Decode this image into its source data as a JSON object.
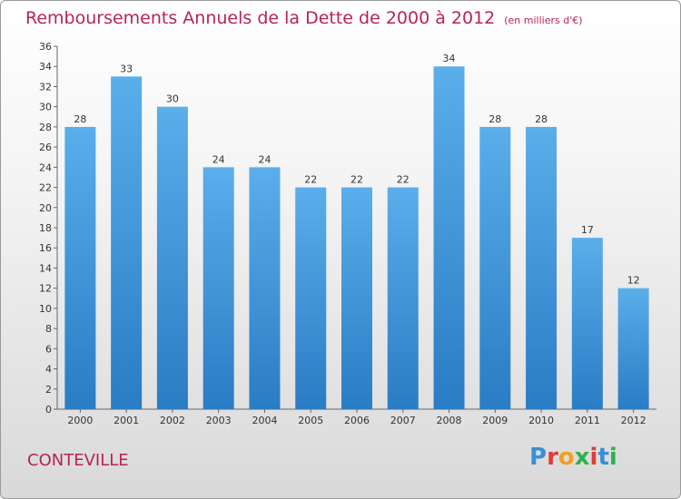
{
  "title": "Remboursements Annuels de la Dette de 2000 à 2012",
  "unit": "(en milliers d'€)",
  "town": "CONTEVILLE",
  "logo": {
    "text": "Proxiti",
    "colors": [
      "#3a8fd6",
      "#e23b3b",
      "#f0a020",
      "#2db34a",
      "#e23b3b",
      "#3a8fd6",
      "#2db34a"
    ]
  },
  "colors": {
    "bar_top": "#5aaeea",
    "bar_bottom": "#2a7cc4",
    "title": "#b5245a"
  },
  "chart_data": {
    "type": "bar",
    "categories": [
      "2000",
      "2001",
      "2002",
      "2003",
      "2004",
      "2005",
      "2006",
      "2007",
      "2008",
      "2009",
      "2010",
      "2011",
      "2012"
    ],
    "values": [
      28,
      33,
      30,
      24,
      24,
      22,
      22,
      22,
      34,
      28,
      28,
      17,
      12
    ],
    "ylim": [
      0,
      36
    ],
    "yticks": [
      0,
      2,
      4,
      6,
      8,
      10,
      12,
      14,
      16,
      18,
      20,
      22,
      24,
      26,
      28,
      30,
      32,
      34,
      36
    ],
    "grid": false,
    "data_labels": true
  }
}
